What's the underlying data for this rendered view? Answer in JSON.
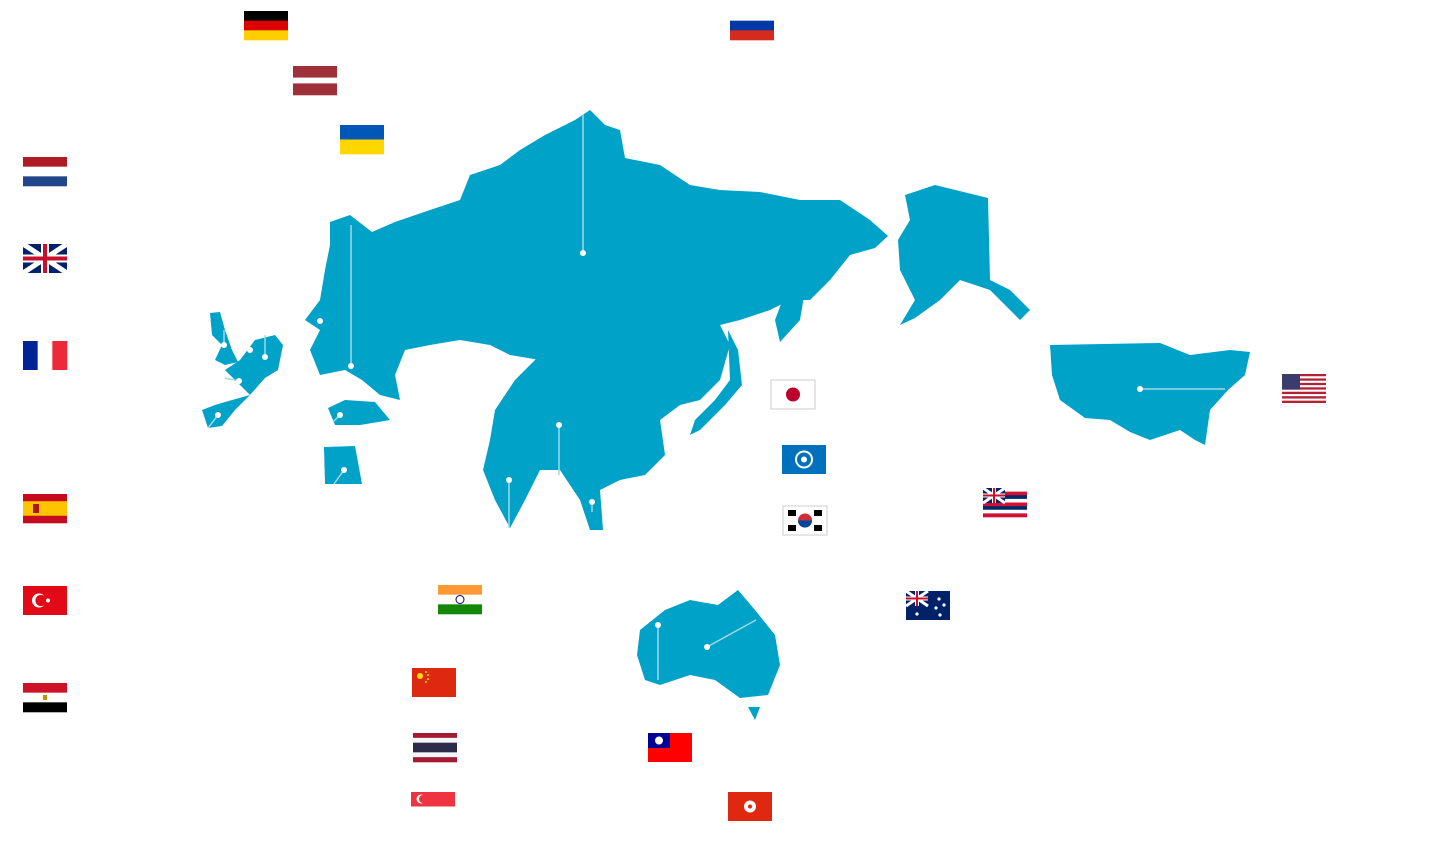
{
  "map": {
    "land_color": "#00a2c7",
    "pin_color": "#ffffff",
    "regions": [
      "europe-asia",
      "north-america",
      "australia",
      "alaska",
      "uk",
      "iberia",
      "turkey",
      "egypt",
      "japan"
    ]
  },
  "flags": [
    {
      "id": "germany",
      "icon": "germany-flag-icon",
      "stripes": [
        "#000000",
        "#dd0000",
        "#ffce00"
      ],
      "dir": "h"
    },
    {
      "id": "russia",
      "icon": "russia-flag-icon",
      "stripes": [
        "#ffffff",
        "#0039a6",
        "#d52b1e"
      ],
      "dir": "h"
    },
    {
      "id": "latvia",
      "icon": "latvia-flag-icon",
      "stripes": [
        "#9e3039",
        "#9e3039",
        "#ffffff",
        "#9e3039",
        "#9e3039"
      ],
      "dir": "h"
    },
    {
      "id": "ukraine",
      "icon": "ukraine-flag-icon",
      "stripes": [
        "#0057b7",
        "#ffd700"
      ],
      "dir": "h"
    },
    {
      "id": "netherlands",
      "icon": "netherlands-flag-icon",
      "stripes": [
        "#ae1c28",
        "#ffffff",
        "#21468b"
      ],
      "dir": "h"
    },
    {
      "id": "uk",
      "icon": "united-kingdom-flag-icon",
      "stripes": [
        "#012169"
      ],
      "dir": "uk"
    },
    {
      "id": "france",
      "icon": "france-flag-icon",
      "stripes": [
        "#002395",
        "#ffffff",
        "#ed2939"
      ],
      "dir": "v"
    },
    {
      "id": "spain",
      "icon": "spain-flag-icon",
      "stripes": [
        "#c60b1e",
        "#ffc400",
        "#ffc400",
        "#c60b1e"
      ],
      "dir": "h"
    },
    {
      "id": "turkey",
      "icon": "turkey-flag-icon",
      "stripes": [
        "#e30a17"
      ],
      "dir": "crescent"
    },
    {
      "id": "egypt",
      "icon": "egypt-flag-icon",
      "stripes": [
        "#ce1126",
        "#ffffff",
        "#000000"
      ],
      "dir": "h"
    },
    {
      "id": "india",
      "icon": "india-flag-icon",
      "stripes": [
        "#ff9933",
        "#ffffff",
        "#138808"
      ],
      "dir": "h"
    },
    {
      "id": "china",
      "icon": "china-flag-icon",
      "stripes": [
        "#de2910"
      ],
      "dir": "star"
    },
    {
      "id": "thailand",
      "icon": "thailand-flag-icon",
      "stripes": [
        "#a51931",
        "#f4f5f8",
        "#2d2a4a",
        "#2d2a4a",
        "#f4f5f8",
        "#a51931"
      ],
      "dir": "h"
    },
    {
      "id": "singapore",
      "icon": "singapore-flag-icon",
      "stripes": [
        "#ef3340",
        "#ffffff"
      ],
      "dir": "h"
    },
    {
      "id": "taiwan",
      "icon": "taiwan-flag-icon",
      "stripes": [
        "#fe0000"
      ],
      "dir": "canton"
    },
    {
      "id": "hongkong",
      "icon": "hong-kong-flag-icon",
      "stripes": [
        "#de2910"
      ],
      "dir": "flower"
    },
    {
      "id": "japan",
      "icon": "japan-flag-icon",
      "stripes": [
        "#ffffff"
      ],
      "dir": "disc"
    },
    {
      "id": "mariana",
      "icon": "northern-mariana-islands-flag-icon",
      "stripes": [
        "#0071bc"
      ],
      "dir": "seal"
    },
    {
      "id": "korea",
      "icon": "south-korea-flag-icon",
      "stripes": [
        "#ffffff"
      ],
      "dir": "taeguk"
    },
    {
      "id": "hawaii",
      "icon": "hawaii-flag-icon",
      "stripes": [
        "#ffffff",
        "#d21034",
        "#002868",
        "#ffffff",
        "#d21034",
        "#002868",
        "#ffffff",
        "#d21034"
      ],
      "dir": "hawaii"
    },
    {
      "id": "australia",
      "icon": "australia-flag-icon",
      "stripes": [
        "#012169"
      ],
      "dir": "aus"
    },
    {
      "id": "usa",
      "icon": "united-states-flag-icon",
      "stripes": [
        "#b22234",
        "#ffffff"
      ],
      "dir": "us"
    }
  ]
}
